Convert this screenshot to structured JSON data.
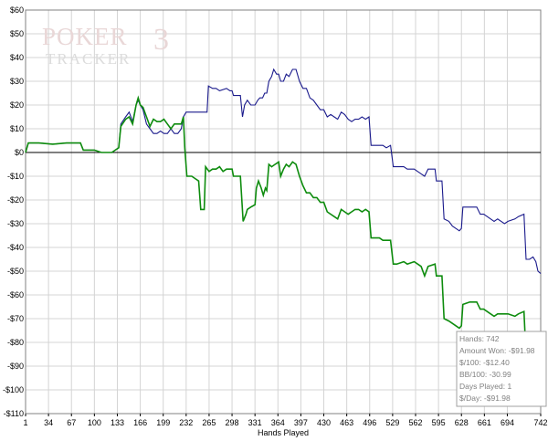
{
  "logo": {
    "name": "poker-tracker-3-logo",
    "primary": "POKER",
    "number": "3",
    "secondary": "TRACKER"
  },
  "chart_data": {
    "type": "line",
    "xlabel": "Hands Played",
    "ylabel": "",
    "xlim": [
      1,
      742
    ],
    "ylim": [
      -110,
      60
    ],
    "x_ticks": [
      1,
      34,
      67,
      100,
      133,
      166,
      199,
      232,
      265,
      298,
      331,
      364,
      397,
      430,
      463,
      496,
      529,
      562,
      595,
      628,
      661,
      694,
      742
    ],
    "y_ticks": [
      60,
      50,
      40,
      30,
      20,
      10,
      0,
      -10,
      -20,
      -30,
      -40,
      -50,
      -60,
      -70,
      -80,
      -90,
      -100,
      -110
    ],
    "y_tick_labels": [
      "$60",
      "$50",
      "$40",
      "$30",
      "$20",
      "$10",
      "$0",
      "-$10",
      "-$20",
      "-$30",
      "-$40",
      "-$50",
      "-$60",
      "-$70",
      "-$80",
      "-$90",
      "-$100",
      "-$110"
    ],
    "grid": true,
    "zero_line": true,
    "series": [
      {
        "color": "#1a1a8c",
        "points": [
          [
            1,
            0
          ],
          [
            5,
            4
          ],
          [
            20,
            4
          ],
          [
            40,
            3.5
          ],
          [
            60,
            4
          ],
          [
            80,
            4
          ],
          [
            84,
            1
          ],
          [
            100,
            1
          ],
          [
            110,
            0
          ],
          [
            125,
            0
          ],
          [
            130,
            1
          ],
          [
            135,
            2
          ],
          [
            138,
            12
          ],
          [
            145,
            15
          ],
          [
            150,
            17
          ],
          [
            155,
            13
          ],
          [
            160,
            20
          ],
          [
            163,
            22
          ],
          [
            166,
            20
          ],
          [
            170,
            18
          ],
          [
            175,
            12
          ],
          [
            180,
            10
          ],
          [
            185,
            8
          ],
          [
            190,
            8
          ],
          [
            195,
            9
          ],
          [
            200,
            8
          ],
          [
            205,
            8
          ],
          [
            210,
            10
          ],
          [
            215,
            8
          ],
          [
            220,
            8
          ],
          [
            225,
            10
          ],
          [
            228,
            15
          ],
          [
            232,
            17
          ],
          [
            262,
            17
          ],
          [
            264,
            28
          ],
          [
            270,
            27
          ],
          [
            275,
            27
          ],
          [
            280,
            26
          ],
          [
            290,
            27
          ],
          [
            295,
            26
          ],
          [
            298,
            26
          ],
          [
            300,
            24
          ],
          [
            310,
            24
          ],
          [
            313,
            15
          ],
          [
            316,
            20
          ],
          [
            320,
            22
          ],
          [
            325,
            20
          ],
          [
            331,
            20
          ],
          [
            335,
            22
          ],
          [
            338,
            23
          ],
          [
            342,
            23
          ],
          [
            345,
            25
          ],
          [
            348,
            25
          ],
          [
            351,
            30
          ],
          [
            355,
            32
          ],
          [
            358,
            35
          ],
          [
            362,
            33
          ],
          [
            365,
            33
          ],
          [
            368,
            30
          ],
          [
            372,
            30
          ],
          [
            376,
            33
          ],
          [
            380,
            32
          ],
          [
            385,
            35
          ],
          [
            390,
            35
          ],
          [
            395,
            30
          ],
          [
            400,
            27
          ],
          [
            405,
            27
          ],
          [
            410,
            23
          ],
          [
            415,
            22
          ],
          [
            420,
            20
          ],
          [
            425,
            18
          ],
          [
            430,
            18
          ],
          [
            435,
            15
          ],
          [
            440,
            16
          ],
          [
            445,
            15
          ],
          [
            450,
            14
          ],
          [
            455,
            17
          ],
          [
            460,
            16
          ],
          [
            465,
            14
          ],
          [
            470,
            13
          ],
          [
            475,
            14
          ],
          [
            480,
            14
          ],
          [
            485,
            15
          ],
          [
            490,
            14
          ],
          [
            495,
            15
          ],
          [
            498,
            3
          ],
          [
            505,
            3
          ],
          [
            510,
            3
          ],
          [
            515,
            3
          ],
          [
            520,
            2
          ],
          [
            526,
            3
          ],
          [
            530,
            -6
          ],
          [
            535,
            -6
          ],
          [
            545,
            -6
          ],
          [
            550,
            -7
          ],
          [
            560,
            -7
          ],
          [
            565,
            -8
          ],
          [
            570,
            -9
          ],
          [
            575,
            -10
          ],
          [
            580,
            -7
          ],
          [
            590,
            -7
          ],
          [
            592,
            -12
          ],
          [
            600,
            -12
          ],
          [
            603,
            -28
          ],
          [
            610,
            -29
          ],
          [
            615,
            -31
          ],
          [
            620,
            -32
          ],
          [
            625,
            -33
          ],
          [
            628,
            -32
          ],
          [
            630,
            -23
          ],
          [
            640,
            -23
          ],
          [
            650,
            -23
          ],
          [
            655,
            -26
          ],
          [
            660,
            -26
          ],
          [
            670,
            -28
          ],
          [
            675,
            -29
          ],
          [
            680,
            -28
          ],
          [
            690,
            -30
          ],
          [
            695,
            -29
          ],
          [
            705,
            -28
          ],
          [
            710,
            -27
          ],
          [
            718,
            -26
          ],
          [
            721,
            -45
          ],
          [
            726,
            -45
          ],
          [
            731,
            -44
          ],
          [
            735,
            -46
          ],
          [
            738,
            -50
          ],
          [
            742,
            -51
          ]
        ]
      },
      {
        "color": "#0e8c0e",
        "points": [
          [
            1,
            0
          ],
          [
            5,
            4
          ],
          [
            20,
            4
          ],
          [
            40,
            3.5
          ],
          [
            60,
            4
          ],
          [
            80,
            4
          ],
          [
            84,
            1
          ],
          [
            100,
            1
          ],
          [
            110,
            0
          ],
          [
            125,
            0
          ],
          [
            130,
            1
          ],
          [
            135,
            2
          ],
          [
            138,
            11
          ],
          [
            145,
            14
          ],
          [
            150,
            15
          ],
          [
            155,
            12
          ],
          [
            160,
            20
          ],
          [
            163,
            23
          ],
          [
            166,
            20
          ],
          [
            170,
            19
          ],
          [
            175,
            15
          ],
          [
            180,
            11
          ],
          [
            185,
            14
          ],
          [
            190,
            13
          ],
          [
            195,
            13
          ],
          [
            200,
            14
          ],
          [
            205,
            12
          ],
          [
            210,
            10
          ],
          [
            215,
            12
          ],
          [
            220,
            12
          ],
          [
            225,
            12
          ],
          [
            228,
            15
          ],
          [
            230,
            2
          ],
          [
            233,
            -10
          ],
          [
            240,
            -10
          ],
          [
            245,
            -11
          ],
          [
            250,
            -12
          ],
          [
            253,
            -24
          ],
          [
            258,
            -24
          ],
          [
            260,
            -6
          ],
          [
            265,
            -8
          ],
          [
            270,
            -7
          ],
          [
            275,
            -7
          ],
          [
            280,
            -6
          ],
          [
            285,
            -8
          ],
          [
            290,
            -7
          ],
          [
            295,
            -7
          ],
          [
            298,
            -7
          ],
          [
            300,
            -10
          ],
          [
            305,
            -10
          ],
          [
            310,
            -10
          ],
          [
            314,
            -29
          ],
          [
            318,
            -26
          ],
          [
            320,
            -24
          ],
          [
            325,
            -23
          ],
          [
            331,
            -22
          ],
          [
            333,
            -15
          ],
          [
            336,
            -12
          ],
          [
            340,
            -15
          ],
          [
            343,
            -18
          ],
          [
            346,
            -15
          ],
          [
            348,
            -16
          ],
          [
            351,
            -5
          ],
          [
            355,
            -6
          ],
          [
            360,
            -5
          ],
          [
            365,
            -4
          ],
          [
            368,
            -10
          ],
          [
            372,
            -7
          ],
          [
            376,
            -5
          ],
          [
            380,
            -6
          ],
          [
            385,
            -4
          ],
          [
            390,
            -5
          ],
          [
            395,
            -10
          ],
          [
            400,
            -14
          ],
          [
            405,
            -17
          ],
          [
            410,
            -17
          ],
          [
            415,
            -19
          ],
          [
            420,
            -19
          ],
          [
            425,
            -21
          ],
          [
            430,
            -21
          ],
          [
            435,
            -25
          ],
          [
            440,
            -26
          ],
          [
            445,
            -27
          ],
          [
            450,
            -28
          ],
          [
            455,
            -24
          ],
          [
            460,
            -25
          ],
          [
            465,
            -26
          ],
          [
            470,
            -25
          ],
          [
            475,
            -24
          ],
          [
            480,
            -24
          ],
          [
            485,
            -25
          ],
          [
            490,
            -24
          ],
          [
            495,
            -25
          ],
          [
            498,
            -36
          ],
          [
            505,
            -36
          ],
          [
            510,
            -36
          ],
          [
            515,
            -37
          ],
          [
            520,
            -37
          ],
          [
            526,
            -37
          ],
          [
            530,
            -47
          ],
          [
            535,
            -47
          ],
          [
            545,
            -46
          ],
          [
            550,
            -47
          ],
          [
            560,
            -46
          ],
          [
            565,
            -47
          ],
          [
            570,
            -48
          ],
          [
            575,
            -52
          ],
          [
            580,
            -48
          ],
          [
            590,
            -47
          ],
          [
            592,
            -52
          ],
          [
            600,
            -52
          ],
          [
            603,
            -70
          ],
          [
            610,
            -71
          ],
          [
            615,
            -72
          ],
          [
            620,
            -73
          ],
          [
            625,
            -74
          ],
          [
            628,
            -73
          ],
          [
            630,
            -64
          ],
          [
            640,
            -63
          ],
          [
            650,
            -63
          ],
          [
            655,
            -66
          ],
          [
            660,
            -66
          ],
          [
            670,
            -68
          ],
          [
            675,
            -69
          ],
          [
            680,
            -68
          ],
          [
            690,
            -68
          ],
          [
            695,
            -68
          ],
          [
            705,
            -69
          ],
          [
            710,
            -68
          ],
          [
            718,
            -67
          ],
          [
            721,
            -86
          ],
          [
            726,
            -86
          ],
          [
            731,
            -86
          ],
          [
            735,
            -88
          ],
          [
            738,
            -90
          ],
          [
            742,
            -92
          ]
        ]
      }
    ],
    "stats": {
      "hands": "Hands: 742",
      "amount_won": "Amount Won: -$91.98",
      "per_100": "$/100: -$12.40",
      "bb_per_100": "BB/100: -30.99",
      "days_played": "Days Played: 1",
      "per_day": "$/Day: -$91.98"
    }
  },
  "colors": {
    "grid": "#d4d4d4",
    "zero_line": "#000000",
    "plot_border": "#808080"
  }
}
